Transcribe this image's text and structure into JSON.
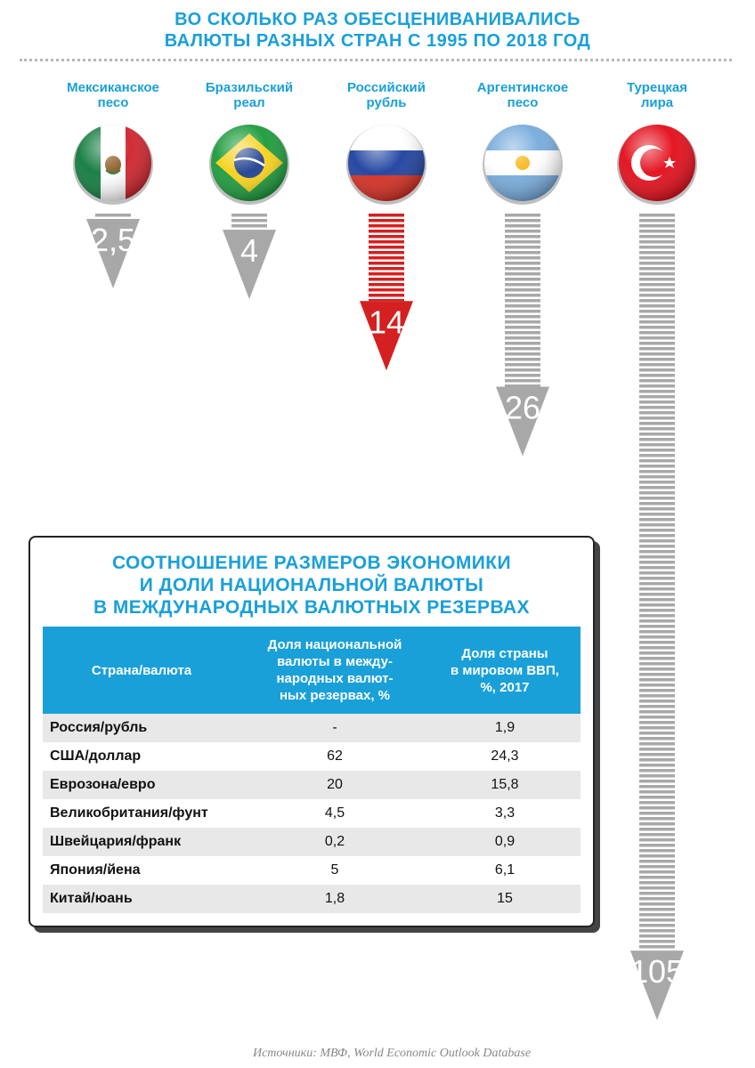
{
  "header": {
    "title_line1": "ВО СКОЛЬКО РАЗ ОБЕСЦЕНИВАНИВАЛИСЬ",
    "title_line2": "ВАЛЮТЫ РАЗНЫХ СТРАН С 1995 ПО 2018 ГОД"
  },
  "chart_data": [
    {
      "type": "bar",
      "orientation": "vertical-down-arrows",
      "categories": [
        "Мексиканское песо",
        "Бразильский реал",
        "Российский рубль",
        "Аргентинское песо",
        "Турецкая лира"
      ],
      "category_lines": [
        [
          "Мексиканское",
          "песо"
        ],
        [
          "Бразильский",
          "реал"
        ],
        [
          "Российский",
          "рубль"
        ],
        [
          "Аргентинское",
          "песо"
        ],
        [
          "Турецкая",
          "лира"
        ]
      ],
      "icons": [
        "mexico-flag-icon",
        "brazil-flag-icon",
        "russia-flag-icon",
        "argentina-flag-icon",
        "turkey-flag-icon"
      ],
      "values": [
        2.5,
        4,
        14,
        26,
        105
      ],
      "value_labels": [
        "2,5",
        "4",
        "14",
        "26",
        "105"
      ],
      "colors": [
        "#a8a8a8",
        "#a8a8a8",
        "#d42020",
        "#a8a8a8",
        "#a8a8a8"
      ],
      "highlight": "Российский рубль"
    },
    {
      "type": "table",
      "title_lines": [
        "СООТНОШЕНИЕ РАЗМЕРОВ ЭКОНОМИКИ",
        "И ДОЛИ НАЦИОНАЛЬНОЙ ВАЛЮТЫ",
        "В МЕЖДУНАРОДНЫХ ВАЛЮТНЫХ РЕЗЕРВАХ"
      ],
      "columns": [
        "Страна/валюта",
        "Доля национальной валюты в международных валют-ных резервах, %",
        "Доля страны в мировом ВВП, %, 2017"
      ],
      "columns_display": [
        [
          "Страна/валюта"
        ],
        [
          "Доля национальной",
          "валюты в между-",
          "народных валют-",
          "ных резервах, %"
        ],
        [
          "Доля страны",
          "в мировом ВВП,",
          "%, 2017"
        ]
      ],
      "rows": [
        [
          "Россия/рубль",
          "-",
          "1,9"
        ],
        [
          "США/доллар",
          "62",
          "24,3"
        ],
        [
          "Еврозона/евро",
          "20",
          "15,8"
        ],
        [
          "Великобритания/фунт",
          "4,5",
          "3,3"
        ],
        [
          "Швейцария/франк",
          "0,2",
          "0,9"
        ],
        [
          "Япония/йена",
          "5",
          "6,1"
        ],
        [
          "Китай/юань",
          "1,8",
          "15"
        ]
      ]
    }
  ],
  "footer": {
    "source": "Источники: МВФ, World Economic Outlook Database"
  },
  "colors": {
    "accent": "#1aa0d8",
    "arrow_gray": "#a8a8a8",
    "arrow_red": "#d42020"
  }
}
